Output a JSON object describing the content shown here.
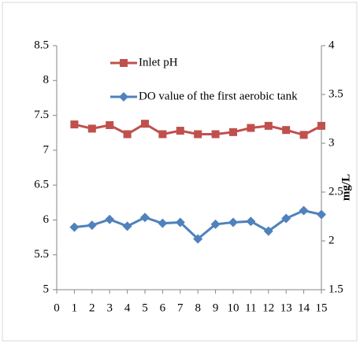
{
  "chart_data": {
    "type": "line",
    "x": [
      1,
      2,
      3,
      4,
      5,
      6,
      7,
      8,
      9,
      10,
      11,
      12,
      13,
      14,
      15
    ],
    "xlim": [
      0,
      15
    ],
    "xticks": [
      0,
      1,
      2,
      3,
      4,
      5,
      6,
      7,
      8,
      9,
      10,
      11,
      12,
      13,
      14,
      15
    ],
    "ylim": [
      5,
      8.5
    ],
    "yticks": [
      5,
      5.5,
      6,
      6.5,
      7,
      7.5,
      8,
      8.5
    ],
    "y2lim": [
      1.5,
      4
    ],
    "y2ticks": [
      1.5,
      2,
      2.5,
      3,
      3.5,
      4
    ],
    "y2label": "mg/L",
    "legend": "top-left",
    "series": [
      {
        "name": "Inlet pH",
        "color": "#c0504d",
        "marker": "square",
        "values": [
          7.37,
          7.31,
          7.36,
          7.23,
          7.38,
          7.23,
          7.28,
          7.23,
          7.23,
          7.26,
          7.32,
          7.35,
          7.29,
          7.22,
          7.35
        ]
      },
      {
        "name": "DO value of the first aerobic tank",
        "color": "#4f81bd",
        "marker": "diamond",
        "axis": "y2",
        "values": [
          2.14,
          2.16,
          2.22,
          2.15,
          2.24,
          2.18,
          2.19,
          2.02,
          2.17,
          2.19,
          2.2,
          2.1,
          2.23,
          2.31,
          2.27
        ]
      }
    ]
  }
}
